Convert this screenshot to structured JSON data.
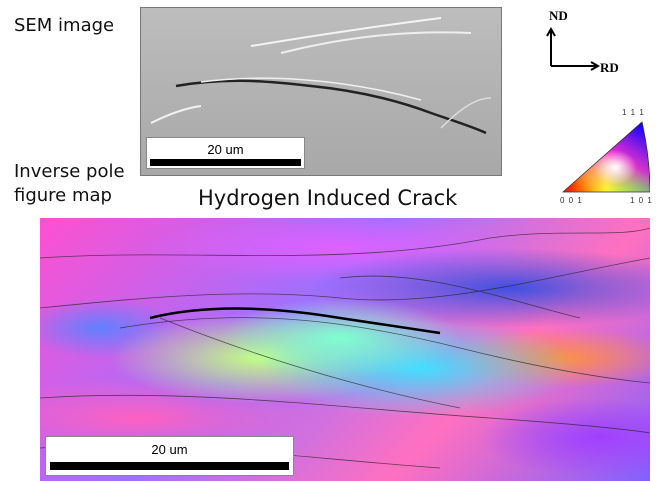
{
  "labels": {
    "sem": "SEM image",
    "ipf_line1": "Inverse pole",
    "ipf_line2": "figure map",
    "title": "Hydrogen Induced Crack"
  },
  "sem_panel": {
    "scale_bar": "20 um"
  },
  "ipf_panel": {
    "scale_bar": "20 um"
  },
  "axes": {
    "vertical": "ND",
    "horizontal": "RD"
  },
  "ipf_key": {
    "top": "1 1 1",
    "left": "0 0 1",
    "right": "1 0 1",
    "colors": {
      "001": "#ff0000",
      "101": "#00ff00",
      "111": "#0000ff"
    }
  }
}
